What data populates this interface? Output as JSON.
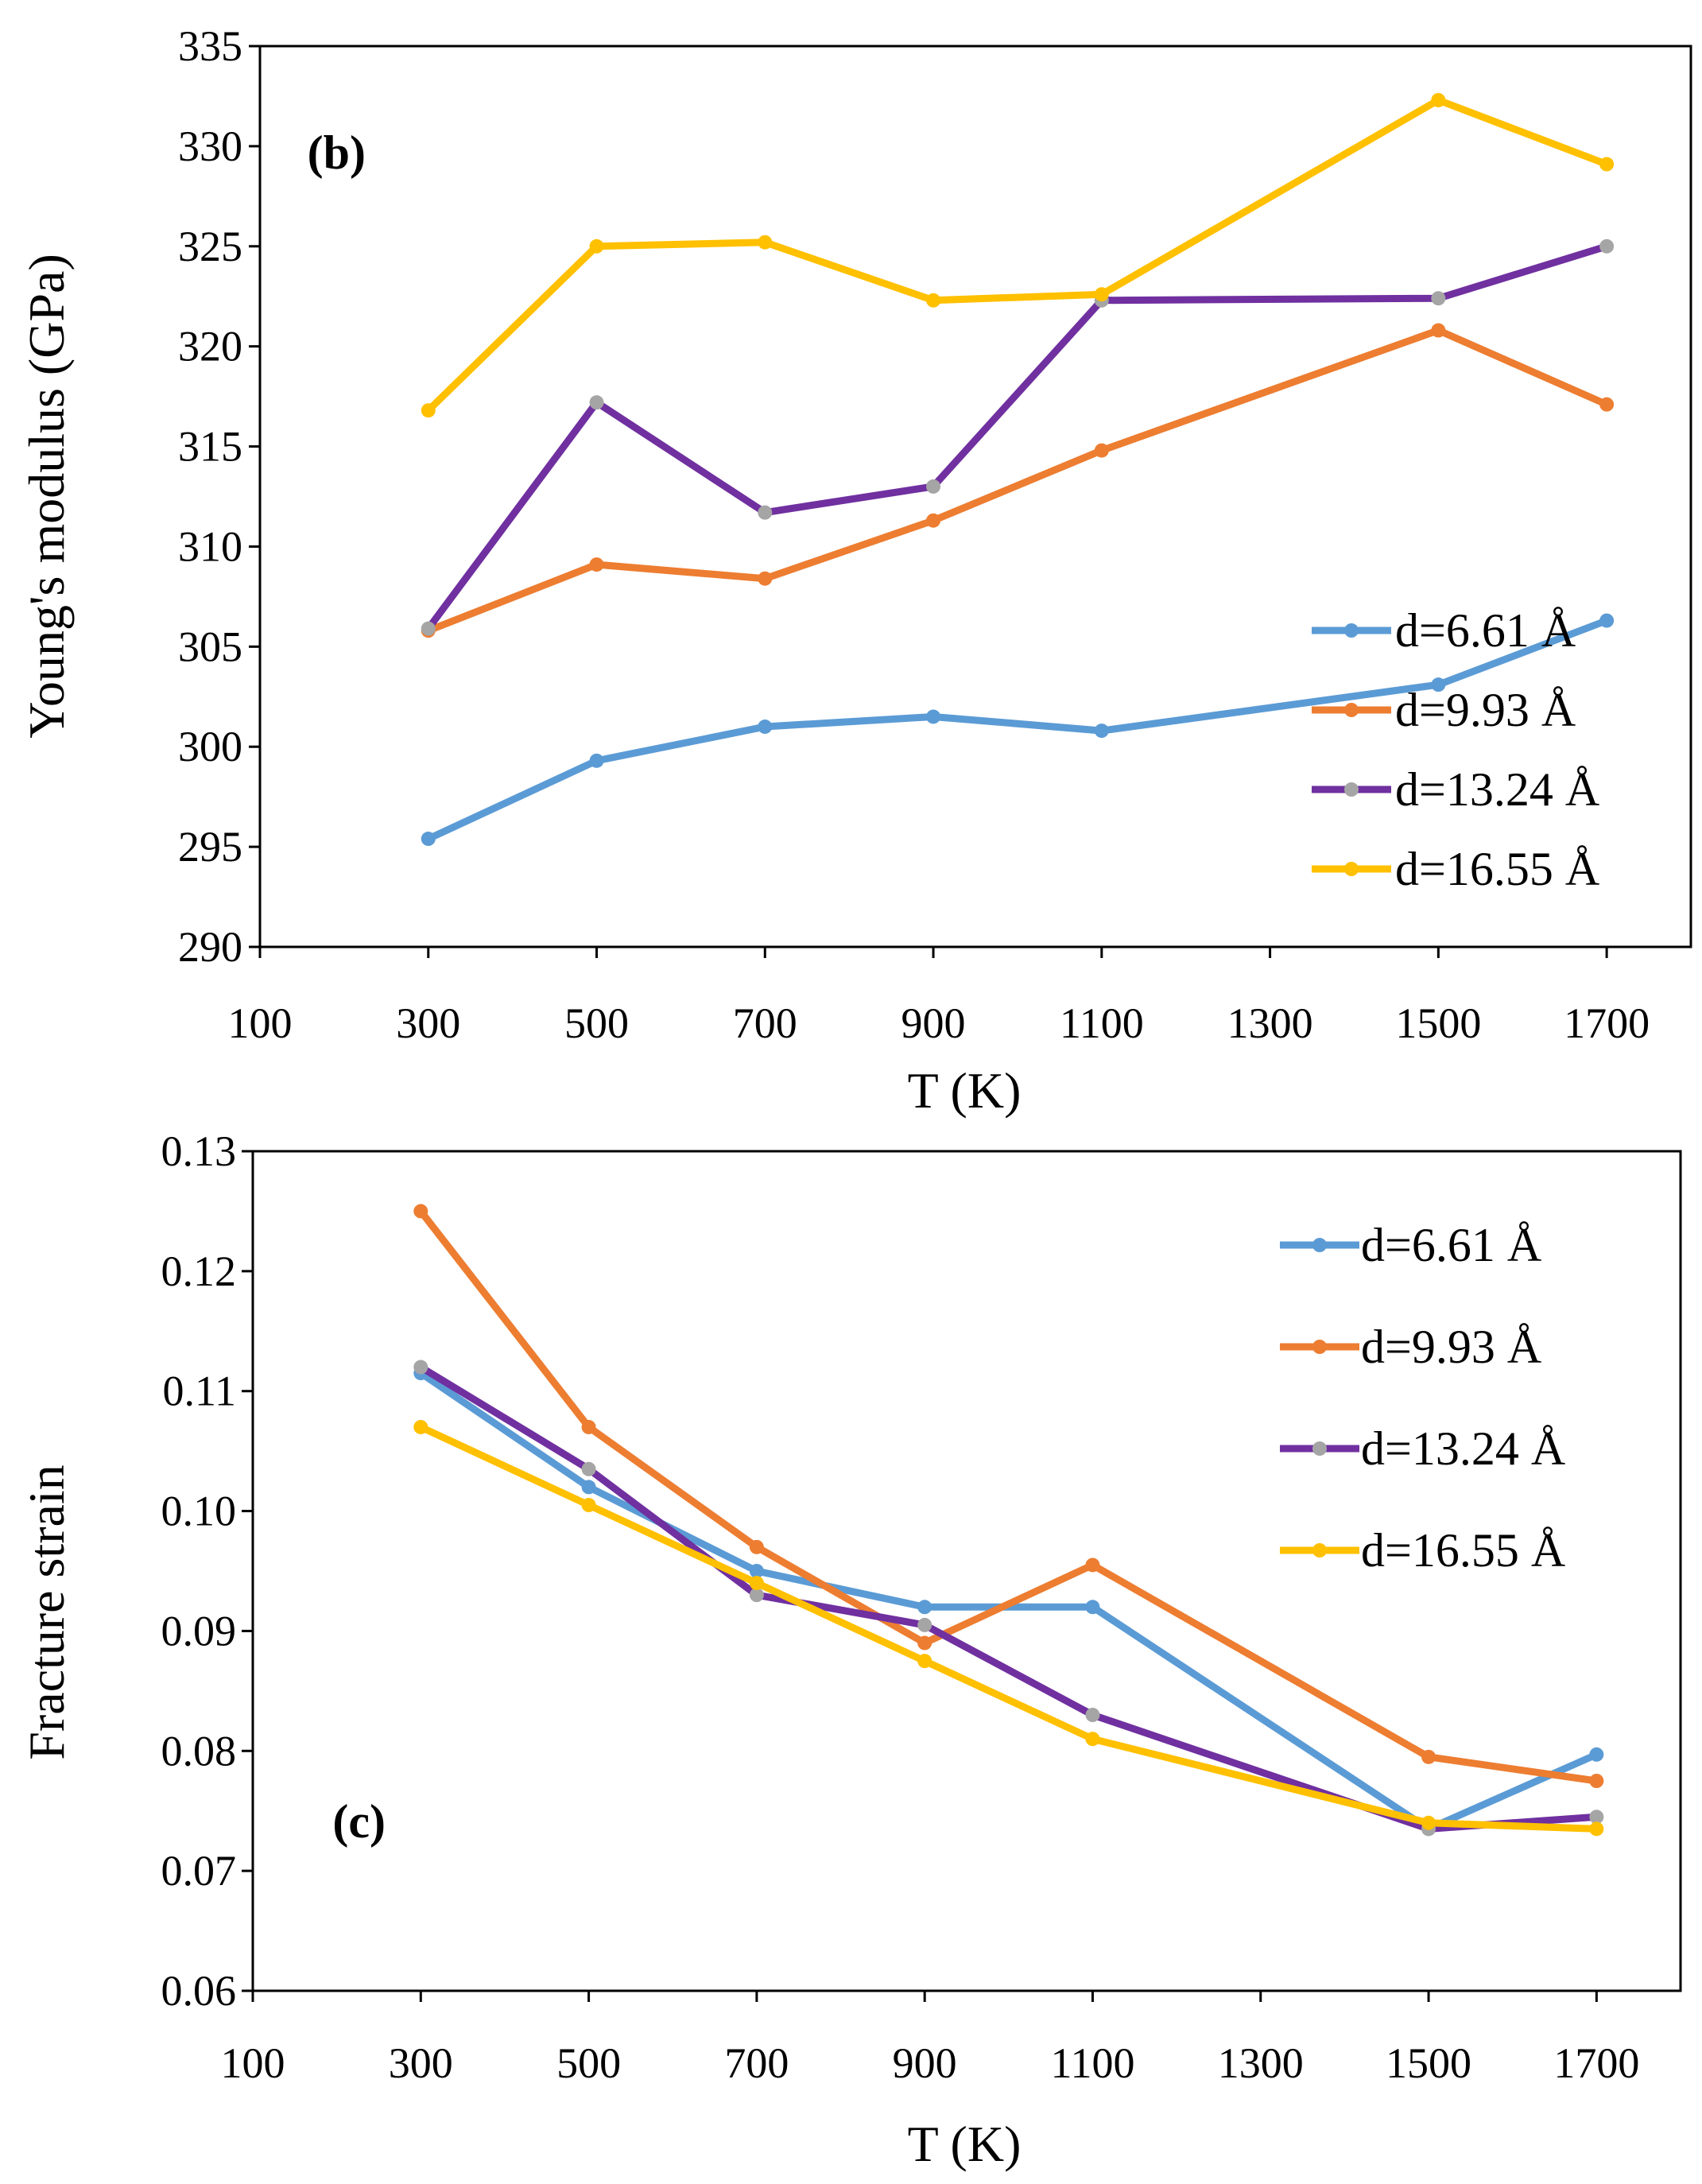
{
  "chart_data": [
    {
      "type": "line",
      "panel_label_open": "(",
      "panel_label_letter": "b",
      "panel_label_close": ")",
      "xlabel": "T (K)",
      "ylabel": "Young's modulus (GPa)",
      "xlim": [
        100,
        1800
      ],
      "ylim": [
        290,
        335
      ],
      "x_ticks": [
        100,
        300,
        500,
        700,
        900,
        1100,
        1300,
        1500,
        1700
      ],
      "x_tick_labels": [
        "100",
        "300",
        "500",
        "700",
        "900",
        "1100",
        "1300",
        "1500",
        "1700"
      ],
      "y_ticks": [
        290,
        295,
        300,
        305,
        310,
        315,
        320,
        325,
        330,
        335
      ],
      "y_tick_labels": [
        "290",
        "295",
        "300",
        "305",
        "310",
        "315",
        "320",
        "325",
        "330",
        "335"
      ],
      "legend_position": "lower-right",
      "x": [
        300,
        500,
        700,
        900,
        1100,
        1500,
        1700
      ],
      "series": [
        {
          "name": "d=6.61 Å",
          "color": "#5B9BD5",
          "marker_color": "#5B9BD5",
          "values": [
            295.4,
            299.3,
            301.0,
            301.5,
            300.8,
            303.1,
            306.3
          ]
        },
        {
          "name": "d=9.93  Å",
          "color": "#ED7D31",
          "marker_color": "#ED7D31",
          "values": [
            305.8,
            309.1,
            308.4,
            311.3,
            314.8,
            320.8,
            317.1
          ]
        },
        {
          "name": "d=13.24  Å",
          "color": "#7030A0",
          "marker_color": "#A5A5A5",
          "values": [
            305.9,
            317.2,
            311.7,
            313.0,
            322.3,
            322.4,
            325.0
          ]
        },
        {
          "name": "d=16.55  Å",
          "color": "#FFC000",
          "marker_color": "#FFC000",
          "values": [
            316.8,
            325.0,
            325.2,
            322.3,
            322.6,
            332.3,
            329.1
          ]
        }
      ]
    },
    {
      "type": "line",
      "panel_label_open": "(",
      "panel_label_letter": "c",
      "panel_label_close": ")",
      "xlabel": "T (K)",
      "ylabel": "Fracture strain",
      "xlim": [
        100,
        1800
      ],
      "ylim": [
        0.06,
        0.13
      ],
      "x_ticks": [
        100,
        300,
        500,
        700,
        900,
        1100,
        1300,
        1500,
        1700
      ],
      "x_tick_labels": [
        "100",
        "300",
        "500",
        "700",
        "900",
        "1100",
        "1300",
        "1500",
        "1700"
      ],
      "y_ticks": [
        0.06,
        0.07,
        0.08,
        0.09,
        0.1,
        0.11,
        0.12,
        0.13
      ],
      "y_tick_labels": [
        "0.06",
        "0.07",
        "0.08",
        "0.09",
        "0.10",
        "0.11",
        "0.12",
        "0.13"
      ],
      "legend_position": "top-right",
      "x": [
        300,
        500,
        700,
        900,
        1100,
        1500,
        1700
      ],
      "series": [
        {
          "name": "d=6.61 Å",
          "color": "#5B9BD5",
          "marker_color": "#5B9BD5",
          "values": [
            0.1115,
            0.102,
            0.095,
            0.092,
            0.092,
            0.0735,
            0.0797
          ]
        },
        {
          "name": "d=9.93  Å",
          "color": "#ED7D31",
          "marker_color": "#ED7D31",
          "values": [
            0.125,
            0.107,
            0.097,
            0.089,
            0.0955,
            0.0795,
            0.0775
          ]
        },
        {
          "name": "d=13.24  Å",
          "color": "#7030A0",
          "marker_color": "#A5A5A5",
          "values": [
            0.112,
            0.1035,
            0.093,
            0.0905,
            0.083,
            0.0735,
            0.0745
          ]
        },
        {
          "name": "d=16.55  Å",
          "color": "#FFC000",
          "marker_color": "#FFC000",
          "values": [
            0.107,
            0.1005,
            0.094,
            0.0875,
            0.081,
            0.074,
            0.0735
          ]
        }
      ]
    }
  ]
}
